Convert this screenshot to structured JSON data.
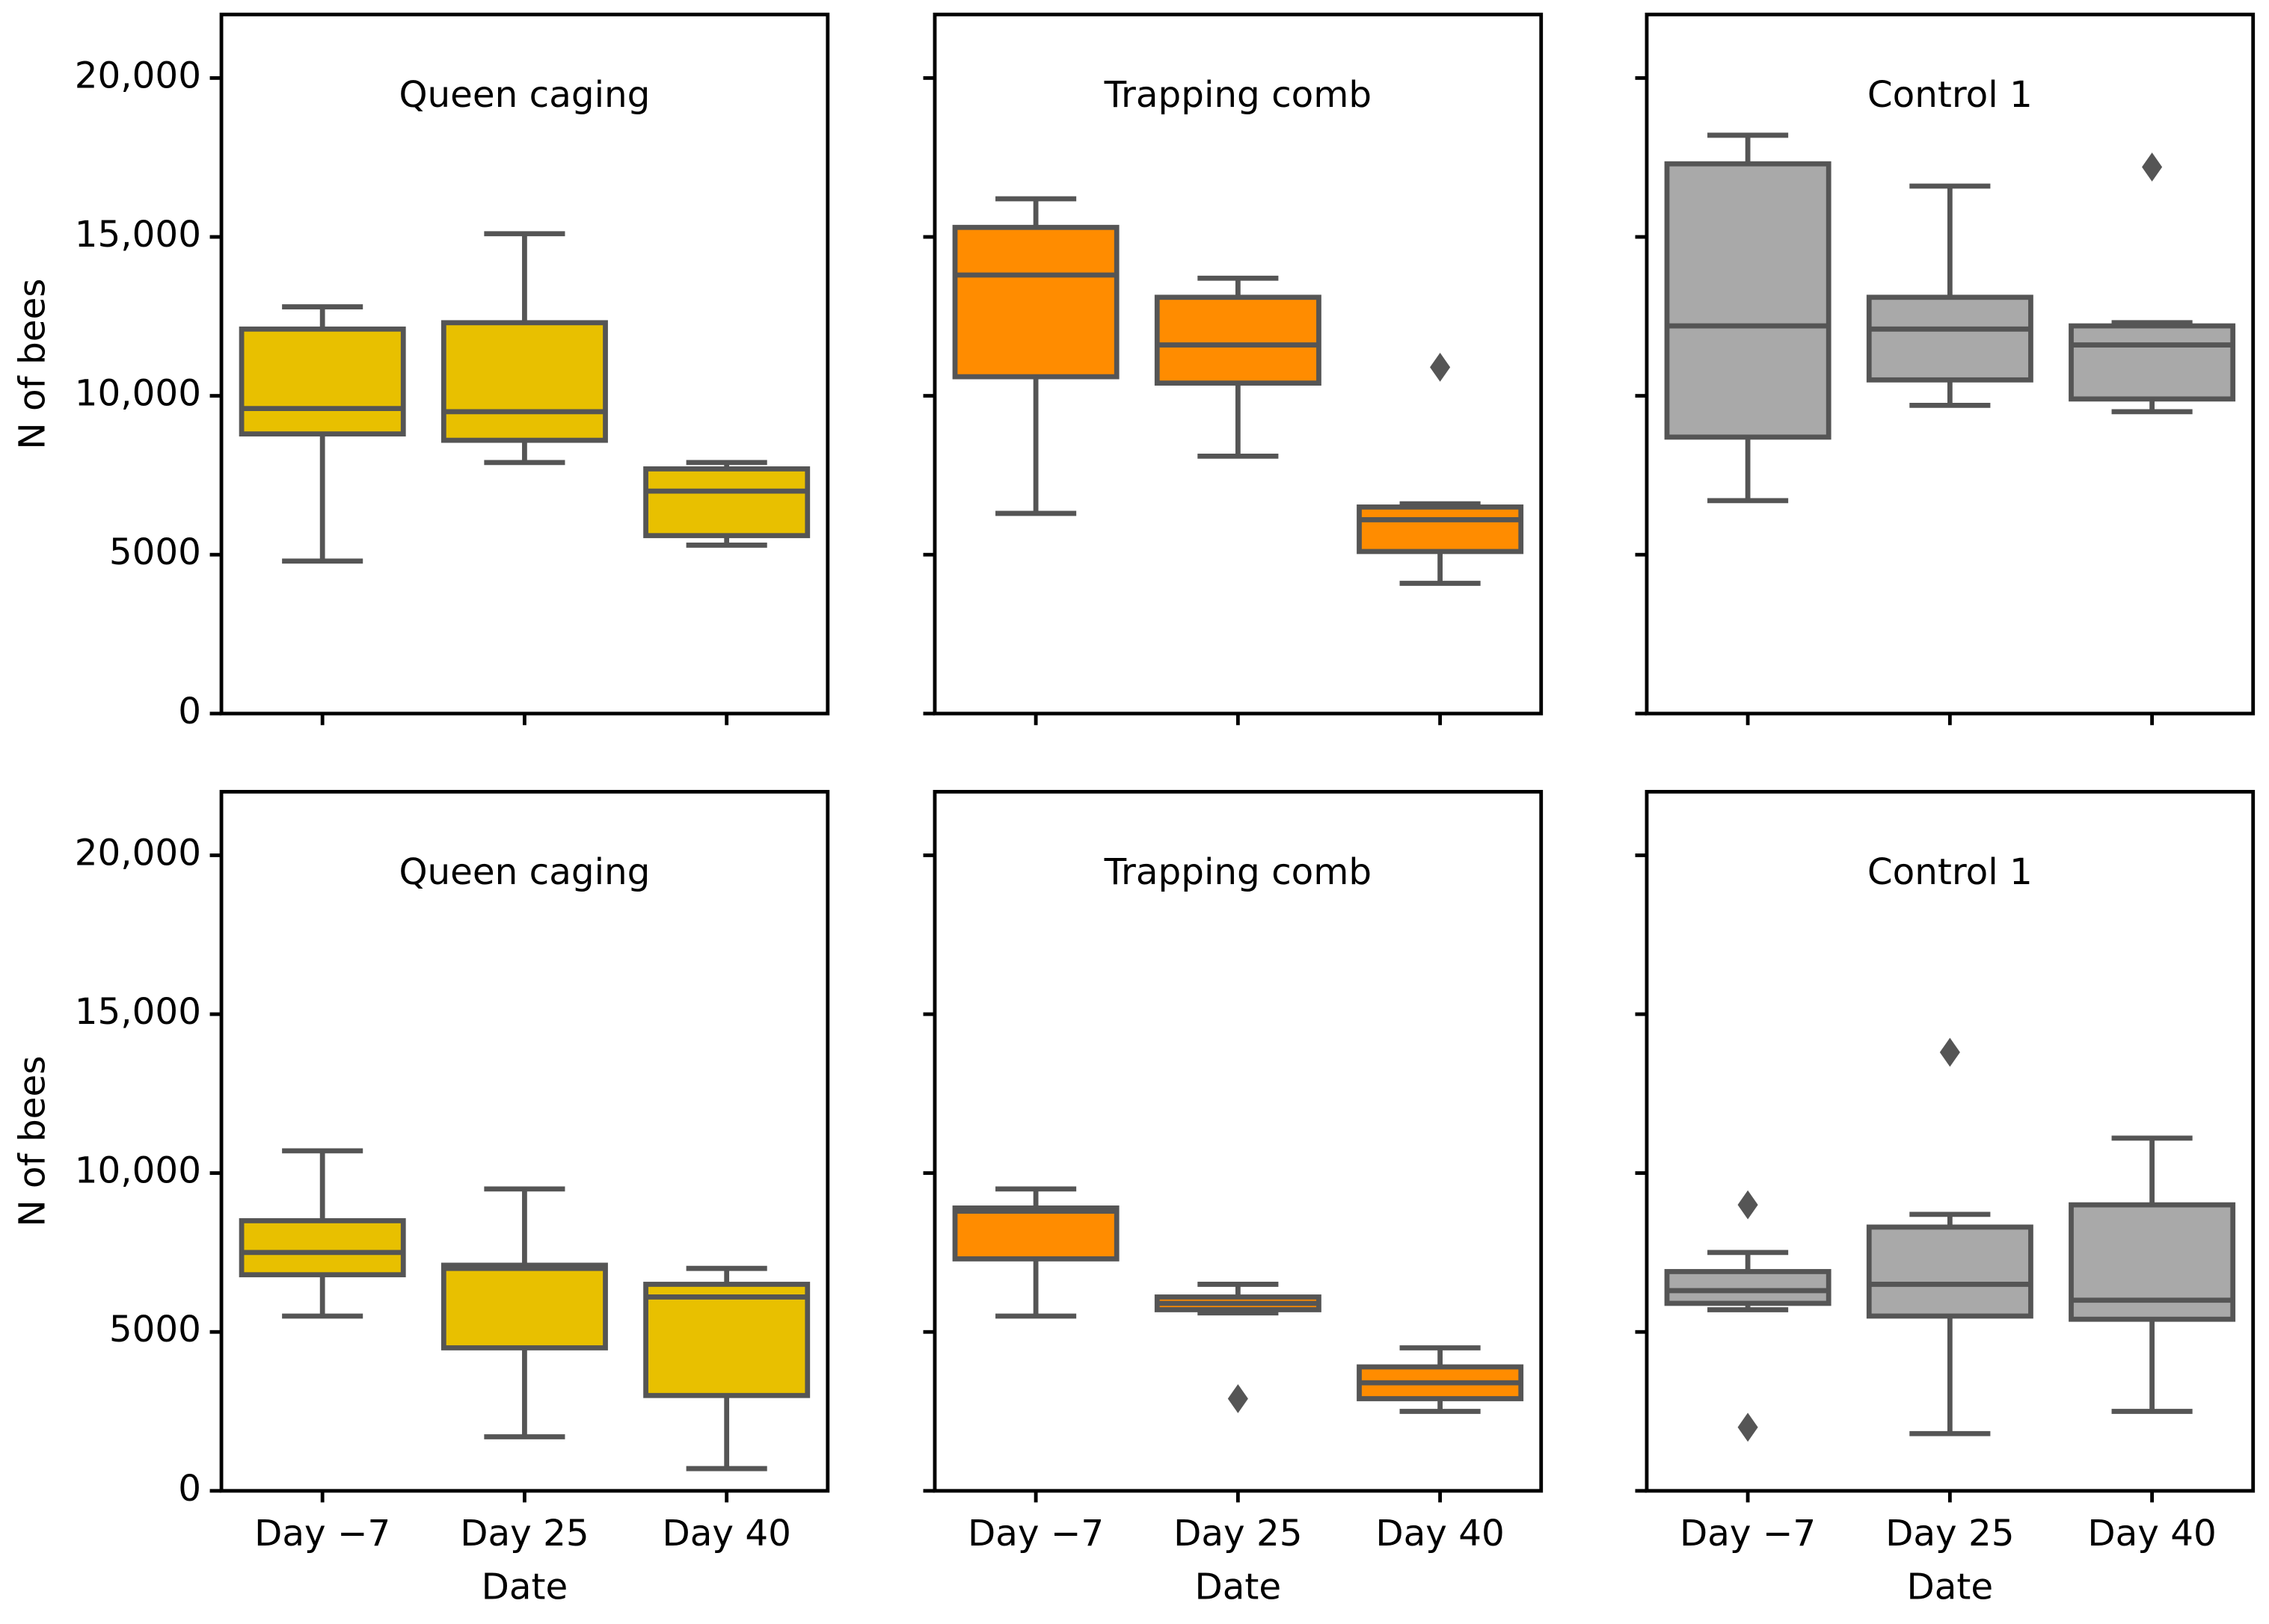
{
  "chart_data": [
    {
      "type": "box",
      "title": "Queen caging",
      "color": "#e8c000",
      "y_label": "N of bees",
      "ylim": [
        0,
        22000
      ],
      "yticks": [
        0,
        5000,
        {
          "value": 10000,
          "label": "10,000"
        },
        {
          "value": 15000,
          "label": "15,000"
        },
        {
          "value": 20000,
          "label": "20,000"
        }
      ],
      "boxes": [
        {
          "whislo": 4800,
          "q1": 8800,
          "med": 9600,
          "q3": 12100,
          "whishi": 12800,
          "fliers": []
        },
        {
          "whislo": 7900,
          "q1": 8600,
          "med": 9500,
          "q3": 12300,
          "whishi": 15100,
          "fliers": []
        },
        {
          "whislo": 5300,
          "q1": 5600,
          "med": 7000,
          "q3": 7700,
          "whishi": 7900,
          "fliers": []
        }
      ]
    },
    {
      "type": "box",
      "title": "Trapping comb",
      "color": "#ff8c00",
      "ylim": [
        0,
        22000
      ],
      "yticks": [
        0,
        5000,
        10000,
        15000,
        20000
      ],
      "boxes": [
        {
          "whislo": 6300,
          "q1": 10600,
          "med": 13800,
          "q3": 15300,
          "whishi": 16200,
          "fliers": []
        },
        {
          "whislo": 8100,
          "q1": 10400,
          "med": 11600,
          "q3": 13100,
          "whishi": 13700,
          "fliers": []
        },
        {
          "whislo": 4100,
          "q1": 5100,
          "med": 6100,
          "q3": 6500,
          "whishi": 6600,
          "fliers": [
            10900
          ]
        }
      ]
    },
    {
      "type": "box",
      "title": "Control 1",
      "color": "#a9a9a9",
      "ylim": [
        0,
        22000
      ],
      "yticks": [
        0,
        5000,
        10000,
        15000,
        20000
      ],
      "boxes": [
        {
          "whislo": 6700,
          "q1": 8700,
          "med": 12200,
          "q3": 17300,
          "whishi": 18200,
          "fliers": []
        },
        {
          "whislo": 9700,
          "q1": 10500,
          "med": 12100,
          "q3": 13100,
          "whishi": 16600,
          "fliers": []
        },
        {
          "whislo": 9500,
          "q1": 9900,
          "med": 11600,
          "q3": 12200,
          "whishi": 12300,
          "fliers": [
            17200
          ]
        }
      ]
    },
    {
      "type": "box",
      "title": "Queen caging",
      "color": "#e8c000",
      "y_label": "N of bees",
      "x_label": "Date",
      "categories": [
        "Day −7",
        "Day 25",
        "Day 40"
      ],
      "ylim": [
        0,
        22000
      ],
      "yticks": [
        0,
        5000,
        {
          "value": 10000,
          "label": "10,000"
        },
        {
          "value": 15000,
          "label": "15,000"
        },
        {
          "value": 20000,
          "label": "20,000"
        }
      ],
      "boxes": [
        {
          "whislo": 5500,
          "q1": 6800,
          "med": 7500,
          "q3": 8500,
          "whishi": 10700,
          "fliers": []
        },
        {
          "whislo": 1700,
          "q1": 4500,
          "med": 7000,
          "q3": 7100,
          "whishi": 9500,
          "fliers": []
        },
        {
          "whislo": 700,
          "q1": 3000,
          "med": 6100,
          "q3": 6500,
          "whishi": 7000,
          "fliers": []
        }
      ]
    },
    {
      "type": "box",
      "title": "Trapping comb",
      "color": "#ff8c00",
      "x_label": "Date",
      "categories": [
        "Day −7",
        "Day 25",
        "Day 40"
      ],
      "ylim": [
        0,
        22000
      ],
      "yticks": [
        0,
        5000,
        10000,
        15000,
        20000
      ],
      "boxes": [
        {
          "whislo": 5500,
          "q1": 7300,
          "med": 8800,
          "q3": 8900,
          "whishi": 9500,
          "fliers": []
        },
        {
          "whislo": 5600,
          "q1": 5700,
          "med": 5900,
          "q3": 6100,
          "whishi": 6500,
          "fliers": [
            2900
          ]
        },
        {
          "whislo": 2500,
          "q1": 2900,
          "med": 3400,
          "q3": 3900,
          "whishi": 4500,
          "fliers": []
        }
      ]
    },
    {
      "type": "box",
      "title": "Control 1",
      "color": "#a9a9a9",
      "x_label": "Date",
      "categories": [
        "Day −7",
        "Day 25",
        "Day 40"
      ],
      "ylim": [
        0,
        22000
      ],
      "yticks": [
        0,
        5000,
        10000,
        15000,
        20000
      ],
      "boxes": [
        {
          "whislo": 5700,
          "q1": 5900,
          "med": 6300,
          "q3": 6900,
          "whishi": 7500,
          "fliers": [
            9000,
            2000
          ]
        },
        {
          "whislo": 1800,
          "q1": 5500,
          "med": 6500,
          "q3": 8300,
          "whishi": 8700,
          "fliers": [
            13800
          ]
        },
        {
          "whislo": 2500,
          "q1": 5400,
          "med": 6000,
          "q3": 9000,
          "whishi": 11100,
          "fliers": []
        }
      ]
    }
  ]
}
